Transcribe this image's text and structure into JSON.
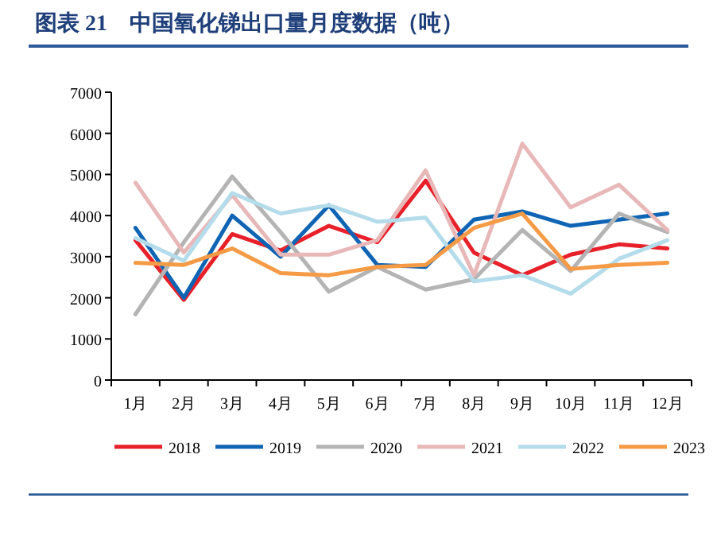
{
  "chart_data": {
    "type": "line",
    "title": "图表 21　中国氧化锑出口量月度数据（吨）",
    "categories": [
      "1月",
      "2月",
      "3月",
      "4月",
      "5月",
      "6月",
      "7月",
      "8月",
      "9月",
      "10月",
      "11月",
      "12月"
    ],
    "ylim": [
      0,
      7000
    ],
    "yticks": [
      0,
      1000,
      2000,
      3000,
      4000,
      5000,
      6000,
      7000
    ],
    "grid": false,
    "legend": "bottom",
    "marker": "none",
    "series": [
      {
        "name": "2018",
        "color": "#e8202a",
        "values": [
          3400,
          1950,
          3550,
          3150,
          3750,
          3350,
          4850,
          3100,
          2550,
          3050,
          3300,
          3200
        ]
      },
      {
        "name": "2019",
        "color": "#0f64b4",
        "values": [
          3700,
          2000,
          4000,
          3000,
          4250,
          2800,
          2750,
          3900,
          4100,
          3750,
          3900,
          4050
        ]
      },
      {
        "name": "2020",
        "color": "#b4b4b4",
        "values": [
          1600,
          3350,
          4950,
          3600,
          2150,
          2750,
          2200,
          2450,
          3650,
          2650,
          4050,
          3600
        ]
      },
      {
        "name": "2021",
        "color": "#e8b8b8",
        "values": [
          4800,
          3100,
          4500,
          3050,
          3050,
          3400,
          5100,
          2550,
          5750,
          4200,
          4750,
          3650
        ]
      },
      {
        "name": "2022",
        "color": "#b4dcea",
        "values": [
          3450,
          2900,
          4550,
          4050,
          4250,
          3850,
          3950,
          2400,
          2550,
          2100,
          2950,
          3400
        ]
      },
      {
        "name": "2023",
        "color": "#f59a45",
        "values": [
          2850,
          2800,
          3200,
          2600,
          2550,
          2750,
          2800,
          3700,
          4050,
          2700,
          2800,
          2850
        ]
      }
    ]
  }
}
